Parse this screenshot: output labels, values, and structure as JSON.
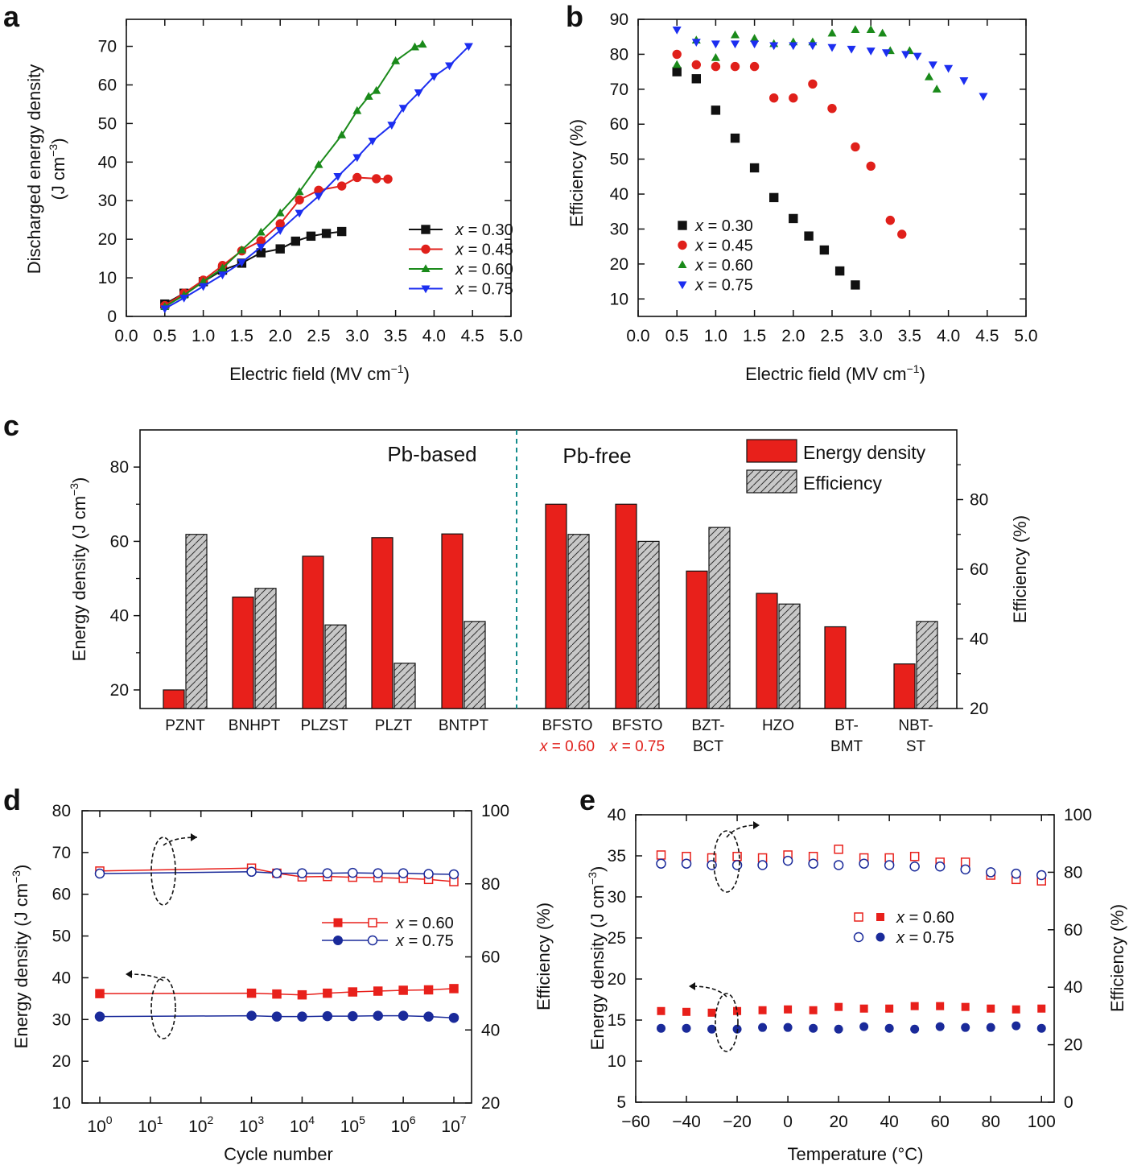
{
  "colors": {
    "s030": "#111111",
    "s045": "#e0201b",
    "s060": "#1a8a1a",
    "s075": "#1c2ef0",
    "d060": "#e8201b",
    "d075": "#1a2a9a",
    "hatch": "#c8c8c8",
    "divider": "#148c8c",
    "axis": "#111111",
    "labelred": "#e0201b"
  },
  "chart_data": [
    {
      "panel": "a",
      "type": "line",
      "xlabel": "Electric field (MV cm",
      "xlabel_sup": "−1",
      "xlabel_end": ")",
      "ylabel": "Discharged energy density",
      "ylabel2": "(J cm",
      "ylabel2_sup": "−3",
      "ylabel2_end": ")",
      "xlim": [
        0,
        5
      ],
      "ylim": [
        0,
        77
      ],
      "xticks": [
        "0.0",
        "0.5",
        "1.0",
        "1.5",
        "2.0",
        "2.5",
        "3.0",
        "3.5",
        "4.0",
        "4.5",
        "5.0"
      ],
      "yticks": [
        "0",
        "10",
        "20",
        "30",
        "40",
        "50",
        "60",
        "70"
      ],
      "legend_prefix": "x",
      "series": [
        {
          "name": "x = 0.30",
          "label": "= 0.30",
          "color_key": "s030",
          "marker": "square",
          "x": [
            0.5,
            0.75,
            1.0,
            1.25,
            1.5,
            1.75,
            2.0,
            2.2,
            2.4,
            2.6,
            2.8
          ],
          "y": [
            3.2,
            6,
            9,
            12,
            13.8,
            16.5,
            17.5,
            19.5,
            20.8,
            21.5,
            22
          ]
        },
        {
          "name": "x = 0.45",
          "label": "= 0.45",
          "color_key": "s045",
          "marker": "circle",
          "x": [
            0.5,
            0.75,
            1.0,
            1.25,
            1.5,
            1.75,
            2.0,
            2.25,
            2.5,
            2.8,
            3.0,
            3.25,
            3.4
          ],
          "y": [
            2.8,
            6,
            9.4,
            13.2,
            17,
            19.6,
            24,
            30.2,
            32.7,
            33.8,
            36,
            35.7,
            35.6
          ]
        },
        {
          "name": "x = 0.60",
          "label": "= 0.60",
          "color_key": "s060",
          "marker": "triangle-up",
          "x": [
            0.5,
            0.75,
            1.0,
            1.25,
            1.5,
            1.75,
            2.0,
            2.25,
            2.5,
            2.8,
            3.0,
            3.15,
            3.25,
            3.5,
            3.75,
            3.85
          ],
          "y": [
            2.5,
            5.5,
            9,
            12.5,
            17.2,
            21.8,
            26.8,
            32.3,
            39.3,
            47,
            53.3,
            57,
            58.5,
            66.2,
            69.8,
            70.5
          ]
        },
        {
          "name": "x = 0.75",
          "label": "= 0.75",
          "color_key": "s075",
          "marker": "triangle-down",
          "x": [
            0.5,
            0.75,
            1.0,
            1.25,
            1.5,
            1.75,
            2.0,
            2.25,
            2.5,
            2.75,
            3.0,
            3.2,
            3.45,
            3.6,
            3.8,
            4.0,
            4.2,
            4.45
          ],
          "y": [
            2,
            4.8,
            7.8,
            10.8,
            14,
            18,
            22.3,
            26.8,
            31.2,
            36.3,
            41.2,
            45.5,
            49.6,
            54,
            58,
            62.2,
            65,
            70
          ]
        }
      ]
    },
    {
      "panel": "b",
      "type": "scatter",
      "xlabel": "Electric field (MV cm",
      "xlabel_sup": "−1",
      "xlabel_end": ")",
      "ylabel": "Efficiency (%)",
      "xlim": [
        0,
        5
      ],
      "ylim": [
        5,
        90
      ],
      "xticks": [
        "0.0",
        "0.5",
        "1.0",
        "1.5",
        "2.0",
        "2.5",
        "3.0",
        "3.5",
        "4.0",
        "4.5",
        "5.0"
      ],
      "yticks": [
        "10",
        "20",
        "30",
        "40",
        "50",
        "60",
        "70",
        "80",
        "90"
      ],
      "legend_prefix": "x",
      "series": [
        {
          "name": "x = 0.30",
          "label": "= 0.30",
          "color_key": "s030",
          "marker": "square",
          "x": [
            0.5,
            0.75,
            1.0,
            1.25,
            1.5,
            1.75,
            2.0,
            2.2,
            2.4,
            2.6,
            2.8
          ],
          "y": [
            75,
            73,
            64,
            56,
            47.5,
            39,
            33,
            28,
            24,
            18,
            14
          ]
        },
        {
          "name": "x = 0.45",
          "label": "= 0.45",
          "color_key": "s045",
          "marker": "circle",
          "x": [
            0.5,
            0.75,
            1.0,
            1.25,
            1.5,
            1.75,
            2.0,
            2.25,
            2.5,
            2.8,
            3.0,
            3.25,
            3.4
          ],
          "y": [
            80,
            77,
            76.5,
            76.5,
            76.5,
            67.5,
            67.5,
            71.5,
            64.5,
            53.5,
            48,
            32.5,
            28.5
          ]
        },
        {
          "name": "x = 0.60",
          "label": "= 0.60",
          "color_key": "s060",
          "marker": "triangle-up",
          "x": [
            0.5,
            0.75,
            1.0,
            1.25,
            1.5,
            1.75,
            2.0,
            2.25,
            2.5,
            2.8,
            3.0,
            3.15,
            3.25,
            3.5,
            3.75,
            3.85
          ],
          "y": [
            77,
            84,
            79,
            85.5,
            84.5,
            83,
            83.5,
            83.5,
            86,
            87,
            87,
            86,
            81,
            81,
            73.5,
            70
          ]
        },
        {
          "name": "x = 0.75",
          "label": "= 0.75",
          "color_key": "s075",
          "marker": "triangle-down",
          "x": [
            0.5,
            0.75,
            1.0,
            1.25,
            1.5,
            1.75,
            2.0,
            2.25,
            2.5,
            2.75,
            3.0,
            3.2,
            3.45,
            3.6,
            3.8,
            4.0,
            4.2,
            4.45
          ],
          "y": [
            87,
            83.5,
            83,
            83,
            83,
            82.5,
            82.5,
            82.5,
            82,
            81.5,
            81,
            80.5,
            80,
            79.5,
            77,
            76,
            72.5,
            68
          ]
        }
      ]
    },
    {
      "panel": "c",
      "type": "bar",
      "ylabel": "Energy density (J cm",
      "ylabel_sup": "−3",
      "ylabel_end": ")",
      "y2label": "Efficiency (%)",
      "ylim": [
        15,
        90
      ],
      "y2lim": [
        20,
        100
      ],
      "yticks": [
        "20",
        "40",
        "60",
        "80"
      ],
      "y2ticks": [
        "20",
        "40",
        "60",
        "80"
      ],
      "group_labels": [
        "Pb-based",
        "Pb-free"
      ],
      "legend": [
        "Energy density",
        "Efficiency"
      ],
      "categories": [
        {
          "l1": "PZNT",
          "l2": "",
          "red": false,
          "italic": false
        },
        {
          "l1": "BNHPT",
          "l2": "",
          "red": false,
          "italic": false
        },
        {
          "l1": "PLZST",
          "l2": "",
          "red": false,
          "italic": false
        },
        {
          "l1": "PLZT",
          "l2": "",
          "red": false,
          "italic": false
        },
        {
          "l1": "BNTPT",
          "l2": "",
          "red": false,
          "italic": false
        },
        {
          "l1": "BFSTO",
          "l2": "= 0.60",
          "red": true,
          "italic": true
        },
        {
          "l1": "BFSTO",
          "l2": "= 0.75",
          "red": true,
          "italic": true
        },
        {
          "l1": "BZT-",
          "l2": "BCT",
          "red": false,
          "italic": false
        },
        {
          "l1": "HZO",
          "l2": "",
          "red": false,
          "italic": false
        },
        {
          "l1": "BT-",
          "l2": "BMT",
          "red": false,
          "italic": false
        },
        {
          "l1": "NBT-",
          "l2": "ST",
          "red": false,
          "italic": false
        }
      ],
      "x_var": "x",
      "energy_density": [
        20,
        45,
        56,
        61,
        62,
        70,
        70,
        52,
        46,
        37,
        27
      ],
      "efficiency": [
        70,
        54.5,
        44,
        33,
        45,
        70,
        68,
        72,
        50,
        null,
        45
      ]
    },
    {
      "panel": "d",
      "type": "line",
      "xlabel": "Cycle number",
      "ylabel": "Energy density (J cm",
      "ylabel_sup": "−3",
      "ylabel_end": ")",
      "y2label": "Efficiency (%)",
      "xscale": "log",
      "xlim_exp": [
        -0.35,
        7.35
      ],
      "ylim": [
        10,
        80
      ],
      "y2lim": [
        20,
        100
      ],
      "xtick_exps": [
        "0",
        "1",
        "2",
        "3",
        "4",
        "5",
        "6",
        "7"
      ],
      "xtick_base": "10",
      "yticks": [
        "10",
        "20",
        "30",
        "40",
        "50",
        "60",
        "70",
        "80"
      ],
      "y2ticks": [
        "20",
        "40",
        "60",
        "80",
        "100"
      ],
      "legend": [
        "= 0.60",
        "= 0.75"
      ],
      "log_cycles": [
        0,
        3,
        3.5,
        4,
        4.5,
        5,
        5.5,
        6,
        6.5,
        7
      ],
      "energy_060": [
        36.2,
        36.3,
        36.1,
        35.9,
        36.3,
        36.6,
        36.8,
        37,
        37.1,
        37.4
      ],
      "energy_075": [
        30.7,
        30.9,
        30.7,
        30.7,
        30.8,
        30.8,
        30.9,
        30.9,
        30.7,
        30.4
      ],
      "eff_060": [
        83.5,
        84.3,
        82.9,
        81.9,
        82,
        81.8,
        81.7,
        81.5,
        81.2,
        80.6
      ],
      "eff_075": [
        82.8,
        83.3,
        82.9,
        82.9,
        82.9,
        83,
        82.9,
        82.9,
        82.7,
        82.6
      ]
    },
    {
      "panel": "e",
      "type": "scatter",
      "xlabel": "Temperature (°C)",
      "ylabel": "Energy density (J cm",
      "ylabel_sup": "−3",
      "ylabel_end": ")",
      "y2label": "Efficiency (%)",
      "xlim": [
        -60,
        105
      ],
      "ylim": [
        5,
        40
      ],
      "y2lim": [
        0,
        100
      ],
      "xticks": [
        "−60",
        "−40",
        "−20",
        "0",
        "20",
        "40",
        "60",
        "80",
        "100"
      ],
      "yticks": [
        "5",
        "10",
        "15",
        "20",
        "25",
        "30",
        "35",
        "40"
      ],
      "y2ticks": [
        "0",
        "20",
        "40",
        "60",
        "80",
        "100"
      ],
      "legend": [
        "= 0.60",
        "= 0.75"
      ],
      "temperature": [
        -50,
        -40,
        -30,
        -20,
        -10,
        0,
        10,
        20,
        30,
        40,
        50,
        60,
        70,
        80,
        90,
        100
      ],
      "energy_060": [
        16.1,
        16,
        15.9,
        16.1,
        16.2,
        16.3,
        16.2,
        16.6,
        16.4,
        16.4,
        16.7,
        16.7,
        16.6,
        16.4,
        16.3,
        16.4
      ],
      "energy_075": [
        14,
        14,
        13.9,
        13.9,
        14.1,
        14.1,
        14,
        13.9,
        14.2,
        14,
        13.9,
        14.2,
        14.1,
        14.1,
        14.3,
        14
      ],
      "eff_060": [
        86,
        85.5,
        85,
        85.5,
        85,
        86,
        85.5,
        88,
        85,
        85,
        85.5,
        83.5,
        83.5,
        79,
        77.5,
        77
      ],
      "eff_075": [
        83,
        83,
        82.5,
        82.5,
        82.5,
        84,
        83,
        82.5,
        83,
        82.5,
        82,
        82,
        81,
        80,
        79.5,
        79
      ]
    }
  ],
  "panel_letters": [
    "a",
    "b",
    "c",
    "d",
    "e"
  ]
}
